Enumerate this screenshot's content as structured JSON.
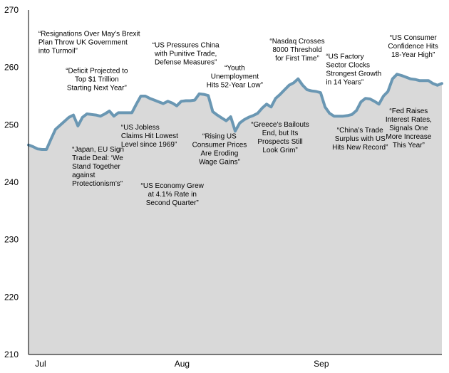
{
  "chart_data": {
    "type": "area",
    "ylim": [
      210,
      270
    ],
    "yticks": [
      270,
      260,
      250,
      240,
      230,
      220,
      210
    ],
    "xticks": [
      {
        "label": "Jul",
        "x": 0
      },
      {
        "label": "Aug",
        "x": 31
      },
      {
        "label": "Sep",
        "x": 62
      }
    ],
    "x_range": [
      -1,
      91
    ],
    "grid": false,
    "colors": {
      "line": "#6a97b3",
      "fill": "#d9d9d9",
      "axis": "#000000"
    },
    "series": [
      {
        "x": [
          -1,
          0,
          1,
          2,
          3,
          4,
          5,
          6,
          7,
          8,
          9,
          10,
          11,
          12,
          13,
          14,
          15,
          16,
          17,
          18,
          19,
          20,
          21,
          22,
          23,
          24,
          25,
          26,
          27,
          28,
          29,
          30,
          31,
          32,
          33,
          34,
          35,
          36,
          37,
          38,
          39,
          40,
          41,
          42,
          43,
          44,
          45,
          46,
          47,
          48,
          49,
          50,
          51,
          52,
          53,
          54,
          55,
          56,
          57,
          58,
          59,
          60,
          61,
          62,
          63,
          64,
          65,
          66,
          67,
          68,
          69,
          70,
          71,
          72,
          73,
          74,
          75,
          76,
          77,
          78,
          79,
          80,
          81,
          82,
          83,
          84,
          85,
          86,
          87,
          88,
          89,
          90,
          91
        ],
        "y": [
          246.5,
          246.2,
          245.8,
          245.7,
          245.7,
          247.5,
          249.2,
          249.9,
          250.6,
          251.3,
          251.7,
          249.8,
          251.3,
          251.9,
          251.8,
          251.7,
          251.5,
          251.9,
          252.4,
          251.5,
          252.1,
          252.1,
          252.1,
          252.1,
          253.6,
          255.0,
          255.0,
          254.6,
          254.3,
          254.0,
          253.7,
          254.1,
          253.8,
          253.3,
          254.1,
          254.2,
          254.2,
          254.3,
          255.4,
          255.3,
          255.1,
          252.3,
          251.7,
          251.2,
          250.7,
          251.4,
          248.9,
          250.3,
          250.9,
          251.3,
          251.6,
          252.0,
          252.9,
          253.6,
          253.1,
          254.6,
          255.3,
          256.1,
          256.9,
          257.3,
          258.0,
          256.9,
          256.1,
          255.9,
          255.8,
          255.6,
          253.1,
          252.0,
          251.5,
          251.5,
          251.5,
          251.6,
          251.8,
          252.5,
          254.0,
          254.6,
          254.5,
          254.1,
          253.6,
          255.0,
          255.8,
          258.0,
          258.8,
          258.6,
          258.3,
          258.0,
          257.9,
          257.7,
          257.7,
          257.7,
          257.2,
          256.9,
          257.2
        ]
      }
    ],
    "annotations": [
      {
        "lines": [
          "“Resignations Over May’s Brexit",
          "Plan Throw UK Government",
          "into Turmoil”"
        ],
        "x": 1.2,
        "y": 265.5,
        "align": "start"
      },
      {
        "lines": [
          "“Deficit Projected to",
          "Top $1 Trillion",
          "Starting Next Year”"
        ],
        "x": 14.2,
        "y": 259.0,
        "align": "middle"
      },
      {
        "lines": [
          "“Japan, EU Sign",
          "Trade Deal: ‘We",
          "Stand Together",
          "against",
          "Protectionism’s”"
        ],
        "x": 8.7,
        "y": 245.3,
        "align": "start"
      },
      {
        "lines": [
          "“US Jobless",
          "Claims Hit Lowest",
          "Level since 1969”"
        ],
        "x": 19.6,
        "y": 249.2,
        "align": "start"
      },
      {
        "lines": [
          "“US Economy Grew",
          "at 4.1% Rate in",
          "Second Quarter”"
        ],
        "x": 31.0,
        "y": 239.0,
        "align": "middle"
      },
      {
        "lines": [
          "“US Pressures China",
          "with Punitive Trade,",
          "Defense Measures”"
        ],
        "x": 34.0,
        "y": 263.5,
        "align": "middle"
      },
      {
        "lines": [
          "“Rising US",
          "Consumer Prices",
          "Are Eroding",
          "Wage Gains”"
        ],
        "x": 41.5,
        "y": 247.6,
        "align": "middle"
      },
      {
        "lines": [
          "“Youth",
          "Unemployment",
          "Hits 52-Year Low”"
        ],
        "x": 44.9,
        "y": 259.5,
        "align": "middle"
      },
      {
        "lines": [
          "“Nasdaq Crosses",
          "8000 Threshold",
          "for First Time”"
        ],
        "x": 58.8,
        "y": 264.2,
        "align": "middle"
      },
      {
        "lines": [
          "“Greece’s Bailouts",
          "End, but Its",
          "Prospects Still",
          "Look Grim”"
        ],
        "x": 55.0,
        "y": 249.7,
        "align": "middle"
      },
      {
        "lines": [
          "“US Factory",
          "Sector Clocks",
          "Strongest Growth",
          "in 14 Years”"
        ],
        "x": 65.2,
        "y": 261.5,
        "align": "start"
      },
      {
        "lines": [
          "“China’s Trade",
          "Surplus with US",
          "Hits New Record”"
        ],
        "x": 72.8,
        "y": 248.7,
        "align": "middle"
      },
      {
        "lines": [
          "“US Consumer",
          "Confidence Hits",
          "18-Year High”"
        ],
        "x": 84.6,
        "y": 264.8,
        "align": "middle"
      },
      {
        "lines": [
          "“Fed Raises",
          "Interest Rates,",
          "Signals One",
          "More Increase",
          "This Year”"
        ],
        "x": 83.6,
        "y": 252.0,
        "align": "middle"
      }
    ]
  }
}
